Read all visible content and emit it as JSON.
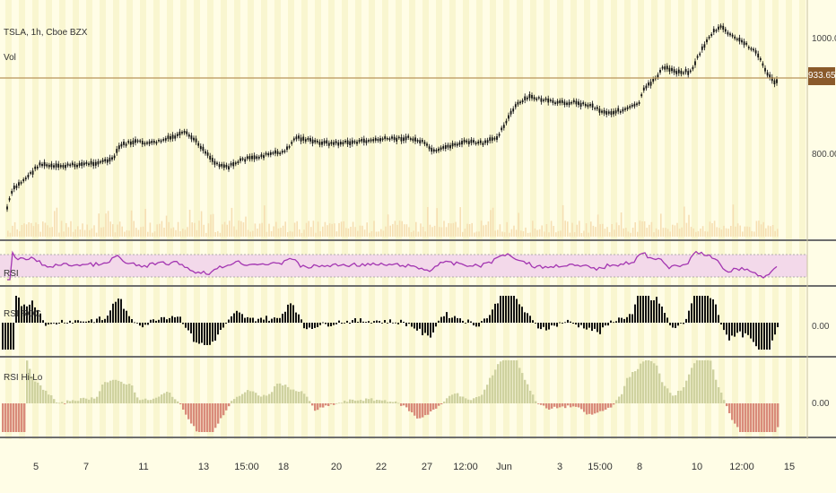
{
  "chart_data": {
    "type": "line",
    "symbol_header": "TSLA, 1h, Cboe BZX",
    "volume_label": "Vol",
    "price_axis": {
      "ticks": [
        "1000.00",
        "800.00"
      ],
      "last_price": "933.65"
    },
    "indicators": {
      "rsi_label": "RSI",
      "rsi_roc_label": "RSI ROC",
      "rsi_roc_zero": "0.00",
      "rsi_hilo_label": "RSI Hi-Lo",
      "rsi_hilo_zero": "0.00"
    },
    "x_ticks": [
      "5",
      "7",
      "11",
      "13",
      "15:00",
      "18",
      "20",
      "22",
      "27",
      "12:00",
      "Jun",
      "3",
      "15:00",
      "8",
      "10",
      "12:00",
      "15"
    ],
    "colors": {
      "background": "#fffde6",
      "stripe": "#f9f6d0",
      "candles": "#111111",
      "price_line": "#b8945a",
      "last_price_tag": "#8a5a2b",
      "volume": "#f6dfb3",
      "rsi_line": "#a335b1",
      "rsi_band": "#f3d9ea",
      "roc_bars": "#111111",
      "hilo_positive": "#cfd2a0",
      "hilo_negative": "#d98b7a"
    }
  }
}
